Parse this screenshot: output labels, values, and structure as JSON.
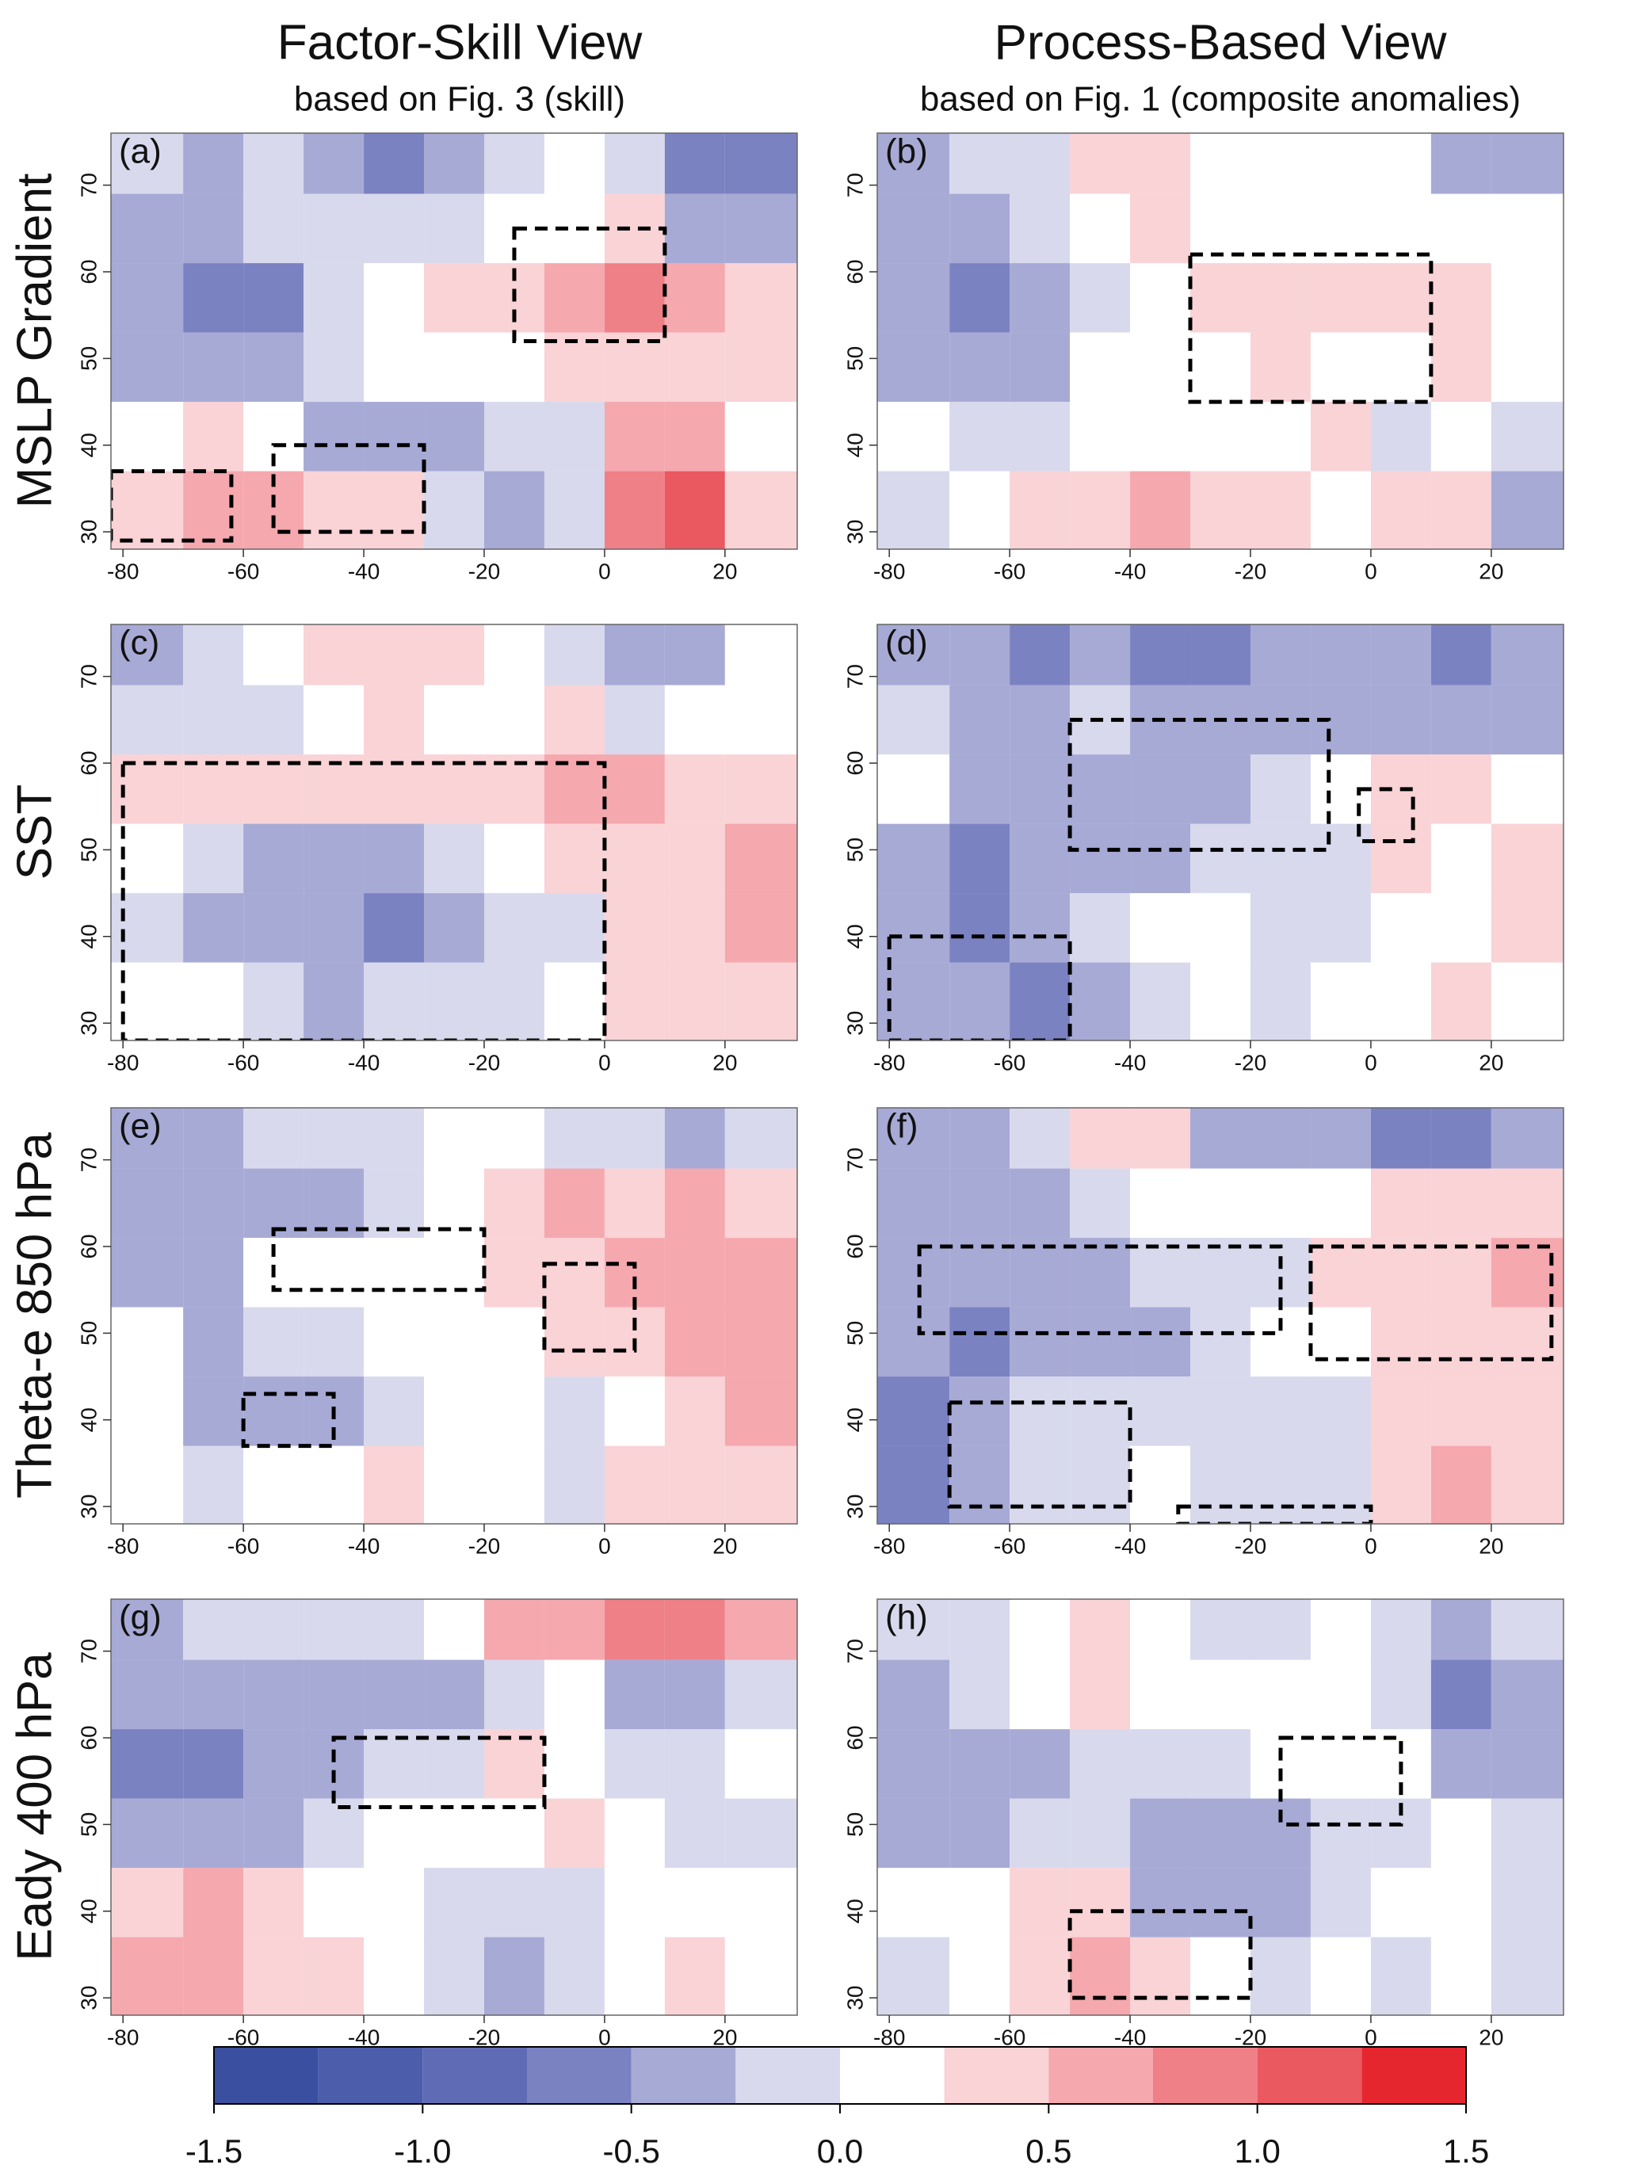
{
  "columns": [
    {
      "title": "Factor-Skill View",
      "subtitle": "based on Fig. 3 (skill)"
    },
    {
      "title": "Process-Based View",
      "subtitle": "based on Fig. 1 (composite anomalies)"
    }
  ],
  "row_labels": [
    "MSLP Gradient",
    "SST",
    "Theta-e 850 hPa",
    "Eady 400 hPa"
  ],
  "colorbar": {
    "levels": [
      -1.5,
      -1.25,
      -1,
      -0.75,
      -0.5,
      -0.25,
      0,
      0.25,
      0.5,
      0.75,
      1,
      1.25,
      1.5
    ],
    "colors": [
      "#3a4f9f",
      "#4b5dab",
      "#5f6cb5",
      "#7a82c2",
      "#a7aad5",
      "#d8d9ed",
      "#ffffff",
      "#f9d3d6",
      "#f5a8ae",
      "#ef8088",
      "#ea5860",
      "#e6262f"
    ],
    "ticks": [
      -1.5,
      {
        "value": -1,
        "label": "-1.0"
      },
      -0.5,
      {
        "value": 0,
        "label": "0.0"
      },
      0.5,
      {
        "value": 1,
        "label": "1.0"
      },
      1.5
    ]
  },
  "chart_data": [
    {
      "type": "heatmap",
      "label": "(a)",
      "xlim": [
        -82,
        32
      ],
      "ylim": [
        28,
        76
      ],
      "xticks": [
        -80,
        -60,
        -40,
        -20,
        0,
        20
      ],
      "yticks": [
        30,
        40,
        50,
        60,
        70
      ],
      "lon_edges": [
        -82,
        -70,
        -60,
        -50,
        -40,
        -30,
        -20,
        -10,
        0,
        10,
        20,
        32
      ],
      "lat_edges": [
        28,
        37,
        45,
        53,
        61,
        69,
        76
      ],
      "values": [
        [
          0.5,
          0.6,
          0.6,
          0.5,
          0.3,
          0,
          -0.3,
          -0.2,
          1.0,
          1.1,
          0.3
        ],
        [
          0.2,
          0.3,
          0.1,
          -0.3,
          -0.3,
          -0.3,
          -0.1,
          0,
          0.7,
          0.6,
          0.2
        ],
        [
          -0.4,
          -0.3,
          -0.3,
          0,
          0.1,
          0.2,
          0.2,
          0.4,
          0.4,
          0.3,
          0.3
        ],
        [
          -0.3,
          -0.5,
          -0.6,
          0,
          0.1,
          0.4,
          0.5,
          0.6,
          0.8,
          0.7,
          0.3
        ],
        [
          -0.3,
          -0.3,
          -0.1,
          0,
          0,
          0,
          0.1,
          0.2,
          0.3,
          -0.3,
          -0.4
        ],
        [
          -0.1,
          -0.3,
          0,
          -0.3,
          -0.5,
          -0.3,
          0,
          0.1,
          -0.1,
          -0.5,
          -0.7
        ]
      ],
      "boxes": [
        [
          -15,
          10,
          52,
          65
        ],
        [
          -82,
          -62,
          29,
          37
        ],
        [
          -55,
          -30,
          30,
          40
        ]
      ]
    },
    {
      "type": "heatmap",
      "label": "(b)",
      "xlim": [
        -82,
        32
      ],
      "ylim": [
        28,
        76
      ],
      "xticks": [
        -80,
        -60,
        -40,
        -20,
        0,
        20
      ],
      "yticks": [
        30,
        40,
        50,
        60,
        70
      ],
      "lon_edges": [
        -82,
        -70,
        -60,
        -50,
        -40,
        -30,
        -20,
        -10,
        0,
        10,
        20,
        32
      ],
      "lat_edges": [
        28,
        37,
        45,
        53,
        61,
        69,
        76
      ],
      "values": [
        [
          0,
          0.1,
          0.3,
          0.5,
          0.6,
          0.4,
          0.3,
          0.2,
          0.4,
          0.3,
          -0.3
        ],
        [
          0.2,
          0,
          0,
          0.2,
          0.2,
          0.2,
          0.2,
          0.3,
          0,
          0.2,
          0
        ],
        [
          -0.3,
          -0.3,
          -0.3,
          0.1,
          0.2,
          0.2,
          0.3,
          0.2,
          0.2,
          0.3,
          0.1
        ],
        [
          -0.3,
          -0.5,
          -0.3,
          0,
          0.1,
          0.3,
          0.5,
          0.3,
          0.3,
          0.4,
          0.2
        ],
        [
          -0.3,
          -0.3,
          -0.1,
          0.2,
          0.4,
          0.2,
          0.2,
          0.2,
          0.2,
          0.2,
          0.1
        ],
        [
          -0.3,
          -0.1,
          -0.1,
          0.3,
          0.5,
          0.2,
          0.2,
          0.2,
          0.2,
          -0.3,
          -0.3
        ]
      ],
      "boxes": [
        [
          -30,
          10,
          45,
          62
        ]
      ]
    },
    {
      "type": "heatmap",
      "label": "(c)",
      "xlim": [
        -82,
        32
      ],
      "ylim": [
        28,
        76
      ],
      "xticks": [
        -80,
        -60,
        -40,
        -20,
        0,
        20
      ],
      "yticks": [
        30,
        40,
        50,
        60,
        70
      ],
      "lon_edges": [
        -82,
        -70,
        -60,
        -50,
        -40,
        -30,
        -20,
        -10,
        0,
        10,
        20,
        32
      ],
      "lat_edges": [
        28,
        37,
        45,
        53,
        61,
        69,
        76
      ],
      "values": [
        [
          0.2,
          0.1,
          0,
          -0.3,
          -0.1,
          0,
          0,
          0.1,
          0.4,
          0.5,
          0.4
        ],
        [
          0,
          -0.3,
          -0.4,
          -0.4,
          -0.5,
          -0.3,
          -0.1,
          0,
          0.3,
          0.4,
          0.6
        ],
        [
          0.1,
          -0.1,
          -0.3,
          -0.3,
          -0.4,
          0,
          0.2,
          0.3,
          0.5,
          0.5,
          0.6
        ],
        [
          0.3,
          0.3,
          0.4,
          0.3,
          0.3,
          0.4,
          0.5,
          0.6,
          0.6,
          0.5,
          0.5
        ],
        [
          0,
          0,
          0,
          0.1,
          0.3,
          0.2,
          0.2,
          0.3,
          0,
          0.1,
          0.2
        ],
        [
          -0.3,
          0,
          0.1,
          0.3,
          0.5,
          0.3,
          0.2,
          0,
          -0.4,
          -0.3,
          0.2
        ]
      ],
      "boxes": [
        [
          -80,
          0,
          28,
          60
        ]
      ]
    },
    {
      "type": "heatmap",
      "label": "(d)",
      "xlim": [
        -82,
        32
      ],
      "ylim": [
        28,
        76
      ],
      "xticks": [
        -80,
        -60,
        -40,
        -20,
        0,
        20
      ],
      "yticks": [
        30,
        40,
        50,
        60,
        70
      ],
      "lon_edges": [
        -82,
        -70,
        -60,
        -50,
        -40,
        -30,
        -20,
        -10,
        0,
        10,
        20,
        32
      ],
      "lat_edges": [
        28,
        37,
        45,
        53,
        61,
        69,
        76
      ],
      "values": [
        [
          -0.4,
          -0.3,
          -0.5,
          -0.3,
          0,
          0.1,
          0,
          0.1,
          0.2,
          0.3,
          0.2
        ],
        [
          -0.4,
          -0.6,
          -0.3,
          -0.1,
          0.1,
          0.1,
          0,
          0,
          0.2,
          0.2,
          0.5
        ],
        [
          -0.3,
          -0.5,
          -0.3,
          -0.3,
          -0.3,
          -0.1,
          -0.1,
          0,
          0.3,
          0.2,
          0.3
        ],
        [
          0.1,
          -0.3,
          -0.3,
          -0.3,
          -0.3,
          -0.3,
          0,
          0.2,
          0.5,
          0.4,
          0.2
        ],
        [
          0,
          -0.3,
          -0.4,
          -0.1,
          -0.3,
          -0.3,
          -0.3,
          -0.3,
          -0.3,
          -0.4,
          -0.3
        ],
        [
          -0.3,
          -0.3,
          -0.5,
          -0.4,
          -0.5,
          -0.6,
          -0.4,
          -0.3,
          -0.4,
          -0.5,
          -0.4
        ]
      ],
      "boxes": [
        [
          -50,
          -7,
          50,
          65
        ],
        [
          -2,
          7,
          51,
          57
        ],
        [
          -80,
          -50,
          28,
          40
        ]
      ]
    },
    {
      "type": "heatmap",
      "label": "(e)",
      "xlim": [
        -82,
        32
      ],
      "ylim": [
        28,
        76
      ],
      "xticks": [
        -80,
        -60,
        -40,
        -20,
        0,
        20
      ],
      "yticks": [
        30,
        40,
        50,
        60,
        70
      ],
      "lon_edges": [
        -82,
        -70,
        -60,
        -50,
        -40,
        -30,
        -20,
        -10,
        0,
        10,
        20,
        32
      ],
      "lat_edges": [
        28,
        37,
        45,
        53,
        61,
        69,
        76
      ],
      "values": [
        [
          0.1,
          0,
          0.2,
          0.1,
          0.3,
          0.2,
          0.1,
          0,
          0.3,
          0.5,
          0.5
        ],
        [
          0.2,
          -0.3,
          -0.4,
          -0.3,
          0,
          0.1,
          0.1,
          0,
          0.2,
          0.4,
          0.6
        ],
        [
          0.1,
          -0.3,
          -0.1,
          0,
          0.1,
          0.1,
          0.2,
          0.3,
          0.4,
          0.6,
          0.7
        ],
        [
          -0.3,
          -0.3,
          0.1,
          0.2,
          0.2,
          0.2,
          0.3,
          0.5,
          0.6,
          0.7,
          0.7
        ],
        [
          -0.3,
          -0.3,
          -0.3,
          -0.3,
          0,
          0.1,
          0.3,
          0.6,
          0.5,
          0.6,
          0.4
        ],
        [
          -0.3,
          -0.3,
          -0.1,
          0,
          0,
          0.2,
          0.1,
          0,
          0,
          -0.3,
          0
        ]
      ],
      "boxes": [
        [
          -55,
          -20,
          55,
          62
        ],
        [
          -10,
          5,
          48,
          58
        ],
        [
          -60,
          -45,
          37,
          43
        ]
      ]
    },
    {
      "type": "heatmap",
      "label": "(f)",
      "xlim": [
        -82,
        32
      ],
      "ylim": [
        28,
        76
      ],
      "xticks": [
        -80,
        -60,
        -40,
        -20,
        0,
        20
      ],
      "yticks": [
        30,
        40,
        50,
        60,
        70
      ],
      "lon_edges": [
        -82,
        -70,
        -60,
        -50,
        -40,
        -30,
        -20,
        -10,
        0,
        10,
        20,
        32
      ],
      "lat_edges": [
        28,
        37,
        45,
        53,
        61,
        69,
        76
      ],
      "values": [
        [
          -0.5,
          -0.3,
          0,
          0,
          0.1,
          0,
          0,
          0,
          0.3,
          0.7,
          0.5
        ],
        [
          -0.6,
          -0.4,
          -0.1,
          0,
          0,
          0,
          0,
          0,
          0.3,
          0.4,
          0.4
        ],
        [
          -0.3,
          -0.5,
          -0.4,
          -0.3,
          -0.3,
          -0.1,
          0.1,
          0.2,
          0.4,
          0.4,
          0.5
        ],
        [
          -0.3,
          -0.3,
          -0.4,
          -0.3,
          -0.1,
          -0.1,
          0,
          0.3,
          0.4,
          0.5,
          0.6
        ],
        [
          -0.3,
          -0.3,
          -0.3,
          -0.1,
          0.1,
          0.1,
          0.1,
          0.2,
          0.3,
          0.3,
          0.3
        ],
        [
          -0.3,
          -0.3,
          -0.1,
          0.3,
          0.5,
          -0.3,
          -0.4,
          -0.4,
          -0.5,
          -0.5,
          -0.3
        ]
      ],
      "boxes": [
        [
          -75,
          -15,
          50,
          60
        ],
        [
          -10,
          30,
          47,
          60
        ],
        [
          -70,
          -40,
          30,
          42
        ],
        [
          -32,
          0,
          28,
          30
        ]
      ]
    },
    {
      "type": "heatmap",
      "label": "(g)",
      "xlim": [
        -82,
        32
      ],
      "ylim": [
        28,
        76
      ],
      "xticks": [
        -80,
        -60,
        -40,
        -20,
        0,
        20
      ],
      "yticks": [
        30,
        40,
        50,
        60,
        70
      ],
      "lon_edges": [
        -82,
        -70,
        -60,
        -50,
        -40,
        -30,
        -20,
        -10,
        0,
        10,
        20,
        32
      ],
      "lat_edges": [
        28,
        37,
        45,
        53,
        61,
        69,
        76
      ],
      "values": [
        [
          0.6,
          0.7,
          0.5,
          0.3,
          0.1,
          -0.1,
          -0.3,
          0,
          0.2,
          0.3,
          0.1
        ],
        [
          0.5,
          0.6,
          0.4,
          0.2,
          0.1,
          0,
          0,
          0,
          0.1,
          0.2,
          0.2
        ],
        [
          -0.4,
          -0.4,
          -0.3,
          0,
          0.2,
          0.2,
          0.2,
          0.3,
          0.1,
          0,
          0
        ],
        [
          -0.5,
          -0.7,
          -0.4,
          -0.3,
          -0.1,
          0,
          0.3,
          0.2,
          0,
          -0.1,
          0.1
        ],
        [
          -0.3,
          -0.3,
          -0.3,
          -0.3,
          -0.3,
          -0.3,
          0,
          0.2,
          -0.3,
          -0.3,
          0
        ],
        [
          -0.3,
          -0.1,
          0,
          -0.1,
          0,
          0.2,
          0.6,
          0.6,
          0.8,
          0.8,
          0.7
        ]
      ],
      "boxes": [
        [
          -45,
          -10,
          52,
          60
        ]
      ]
    },
    {
      "type": "heatmap",
      "label": "(h)",
      "xlim": [
        -82,
        32
      ],
      "ylim": [
        28,
        76
      ],
      "xticks": [
        -80,
        -60,
        -40,
        -20,
        0,
        20
      ],
      "yticks": [
        30,
        40,
        50,
        60,
        70
      ],
      "lon_edges": [
        -82,
        -70,
        -60,
        -50,
        -40,
        -30,
        -20,
        -10,
        0,
        10,
        20,
        32
      ],
      "lat_edges": [
        28,
        37,
        45,
        53,
        61,
        69,
        76
      ],
      "values": [
        [
          -0.1,
          0.2,
          0.4,
          0.6,
          0.4,
          0.1,
          0,
          0.1,
          0,
          0.2,
          0
        ],
        [
          0.1,
          0.2,
          0.4,
          0.3,
          -0.3,
          -0.3,
          -0.3,
          -0.1,
          0.1,
          0.1,
          0
        ],
        [
          -0.4,
          -0.3,
          -0.1,
          0,
          -0.3,
          -0.4,
          -0.3,
          -0.1,
          0,
          0.1,
          0
        ],
        [
          -0.3,
          -0.3,
          -0.3,
          0,
          0,
          0,
          0.1,
          0.2,
          0.2,
          -0.4,
          -0.3
        ],
        [
          -0.3,
          -0.1,
          0.2,
          0.3,
          0.1,
          0.1,
          0.2,
          0.1,
          0,
          -0.5,
          -0.4
        ],
        [
          0,
          0,
          0.2,
          0.4,
          0.2,
          -0.1,
          0,
          0.1,
          0,
          -0.3,
          -0.1
        ]
      ],
      "boxes": [
        [
          -15,
          5,
          50,
          60
        ],
        [
          -50,
          -20,
          30,
          40
        ]
      ]
    }
  ]
}
